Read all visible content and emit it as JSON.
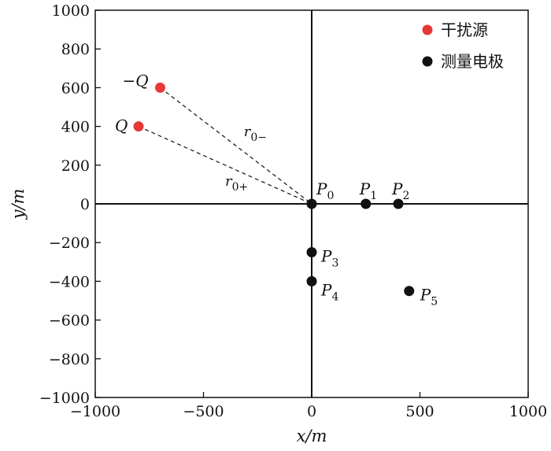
{
  "chart_data": {
    "type": "scatter",
    "xlabel": "x/m",
    "ylabel": "y/m",
    "xlim": [
      -1000,
      1000
    ],
    "ylim": [
      -1000,
      1000
    ],
    "xticks": [
      -1000,
      -500,
      0,
      500,
      1000
    ],
    "yticks": [
      1000,
      800,
      600,
      400,
      200,
      0,
      -200,
      -400,
      -600,
      -800,
      -1000
    ],
    "xtick_labels": [
      "−1000",
      "−500",
      "0",
      "500",
      "1000"
    ],
    "ytick_labels": [
      "1000",
      "800",
      "600",
      "400",
      "200",
      "0",
      "−200",
      "−400",
      "−600",
      "−800",
      "−1000"
    ],
    "grid": false,
    "legend_position": "top-right",
    "series": [
      {
        "name": "干扰源",
        "color": "#e53935",
        "points": [
          {
            "label": "−Q",
            "x": -700,
            "y": 600
          },
          {
            "label": "Q",
            "x": -800,
            "y": 400
          }
        ]
      },
      {
        "name": "测量电极",
        "color": "#111111",
        "points": [
          {
            "label": "P",
            "sub": "0",
            "x": 0,
            "y": 0
          },
          {
            "label": "P",
            "sub": "1",
            "x": 250,
            "y": 0
          },
          {
            "label": "P",
            "sub": "2",
            "x": 400,
            "y": 0
          },
          {
            "label": "P",
            "sub": "3",
            "x": 0,
            "y": -250
          },
          {
            "label": "P",
            "sub": "4",
            "x": 0,
            "y": -400
          },
          {
            "label": "P",
            "sub": "5",
            "x": 450,
            "y": -450
          }
        ]
      }
    ],
    "dashed_lines": [
      {
        "from": [
          -700,
          600
        ],
        "to": [
          0,
          0
        ],
        "label": "r",
        "sub": "0−"
      },
      {
        "from": [
          -800,
          400
        ],
        "to": [
          0,
          0
        ],
        "label": "r",
        "sub": "0+"
      }
    ]
  }
}
